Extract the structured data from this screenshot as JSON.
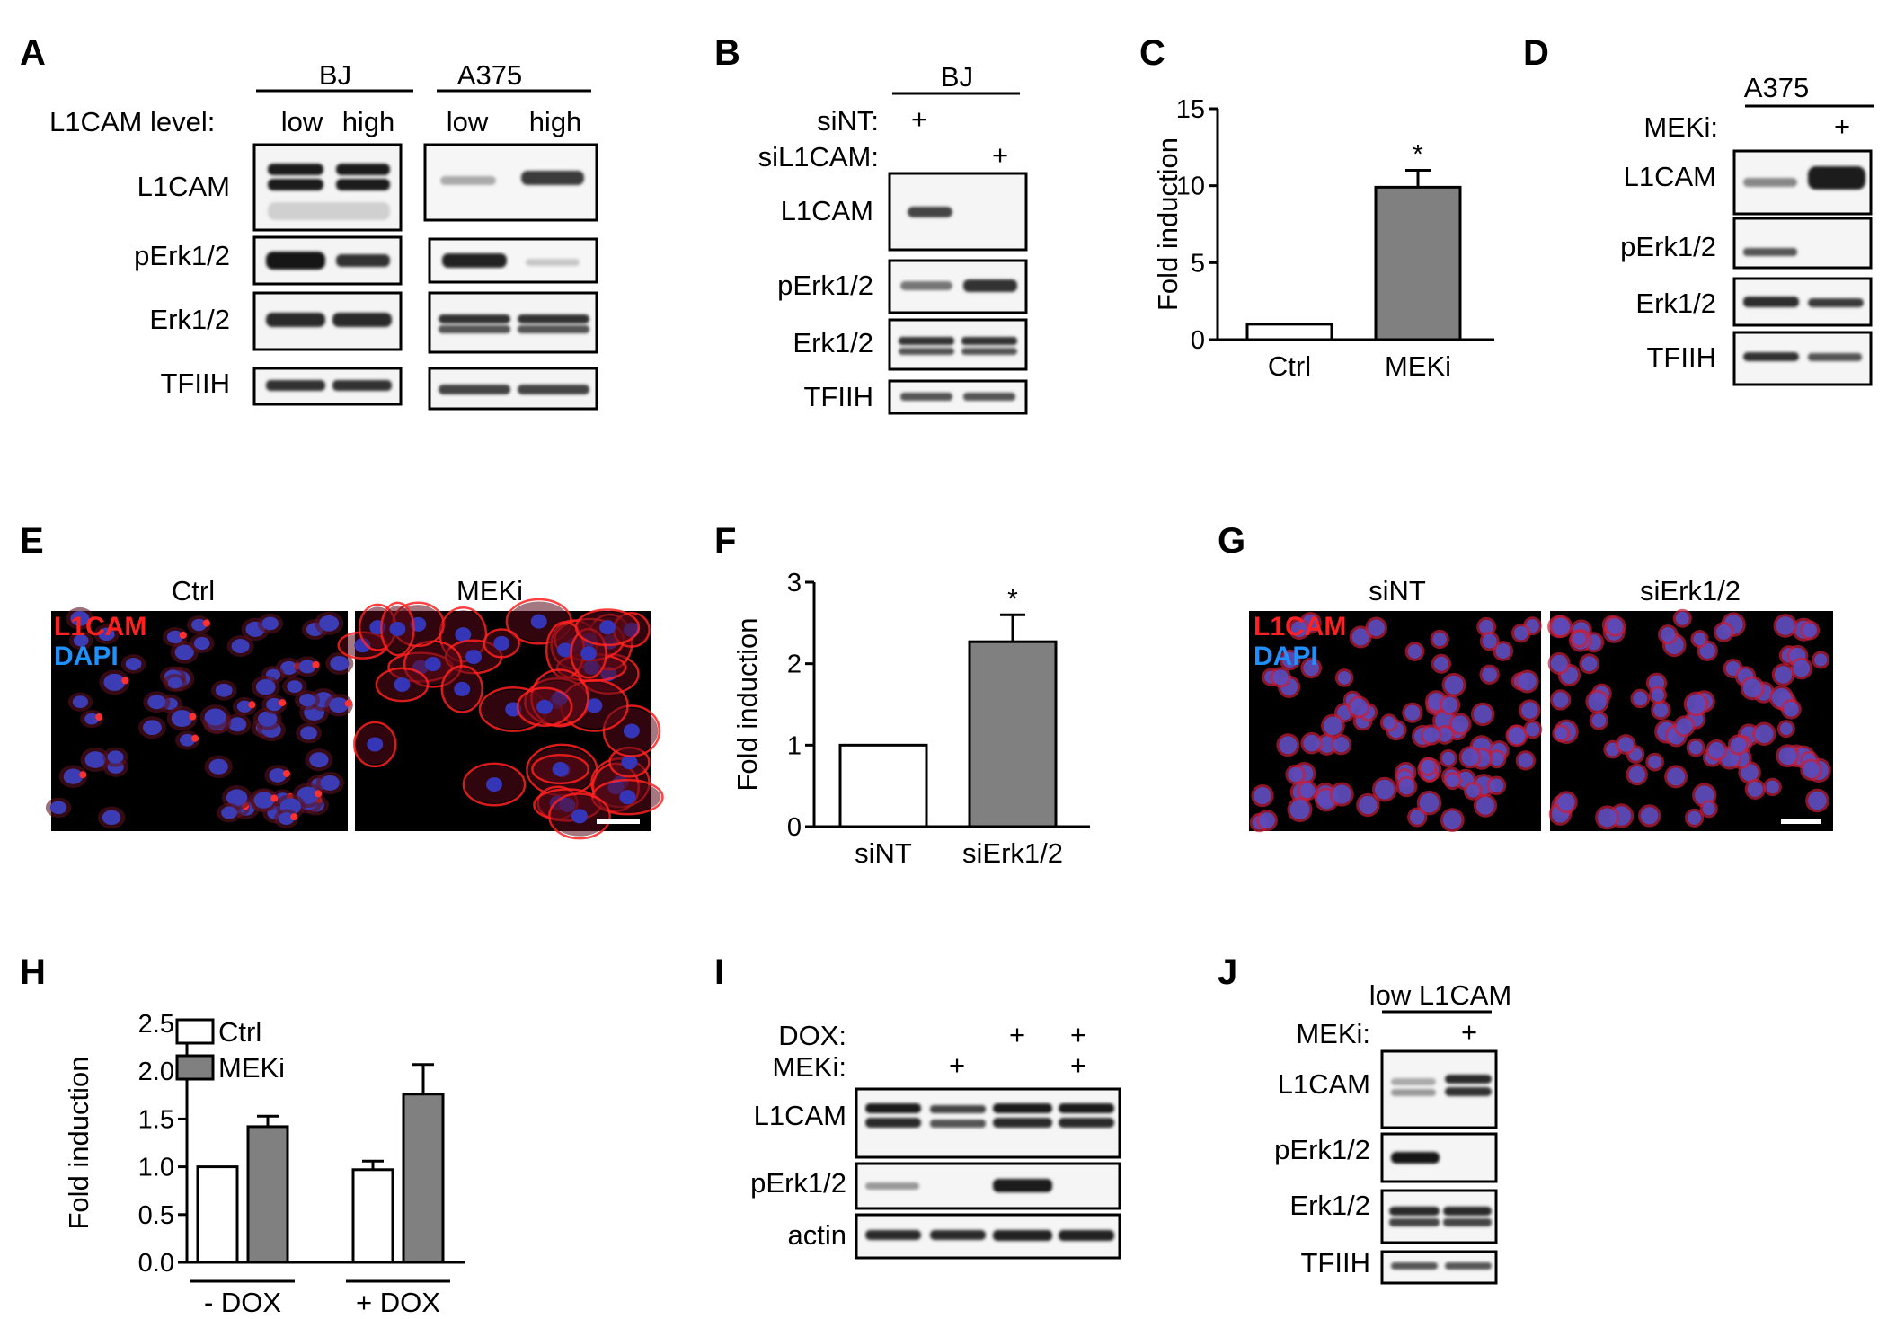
{
  "panels": {
    "A": {
      "letter": "A",
      "group1": "BJ",
      "group2": "A375",
      "level_label": "L1CAM level:",
      "lanes": [
        "low",
        "high",
        "low",
        "high"
      ],
      "rows": [
        "L1CAM",
        "pErk1/2",
        "Erk1/2",
        "TFIIH"
      ]
    },
    "B": {
      "letter": "B",
      "group": "BJ",
      "cond1": "siNT:",
      "cond2": "siL1CAM:",
      "plus": "+",
      "rows": [
        "L1CAM",
        "pErk1/2",
        "Erk1/2",
        "TFIIH"
      ]
    },
    "C": {
      "letter": "C"
    },
    "D": {
      "letter": "D",
      "group": "A375",
      "cond": "MEKi:",
      "plus": "+",
      "rows": [
        "L1CAM",
        "pErk1/2",
        "Erk1/2",
        "TFIIH"
      ]
    },
    "E": {
      "letter": "E",
      "titles": [
        "Ctrl",
        "MEKi"
      ],
      "stain1": "L1CAM",
      "stain2": "DAPI"
    },
    "F": {
      "letter": "F"
    },
    "G": {
      "letter": "G",
      "titles": [
        "siNT",
        "siErk1/2"
      ],
      "stain1": "L1CAM",
      "stain2": "DAPI"
    },
    "H": {
      "letter": "H"
    },
    "I": {
      "letter": "I",
      "cond1": "DOX:",
      "cond2": "MEKi:",
      "plus": "+",
      "rows": [
        "L1CAM",
        "pErk1/2",
        "actin"
      ]
    },
    "J": {
      "letter": "J",
      "group": "low L1CAM",
      "cond": "MEKi:",
      "plus": "+",
      "rows": [
        "L1CAM",
        "pErk1/2",
        "Erk1/2",
        "TFIIH"
      ]
    }
  },
  "colors": {
    "control_bar": "#ffffff",
    "treated_bar": "#808080",
    "l1cam_stain": "#ff2020",
    "dapi_stain": "#1e90ff"
  },
  "chart_data": [
    {
      "panel": "C",
      "type": "bar",
      "categories": [
        "Ctrl",
        "MEKi"
      ],
      "values": [
        1.0,
        9.9
      ],
      "errors": [
        0,
        1.1
      ],
      "significance": [
        "",
        "*"
      ],
      "ylabel": "Fold induction",
      "ylim": [
        0,
        15
      ],
      "yticks": [
        0,
        5,
        10,
        15
      ]
    },
    {
      "panel": "F",
      "type": "bar",
      "categories": [
        "siNT",
        "siErk1/2"
      ],
      "values": [
        1.0,
        2.27
      ],
      "errors": [
        0,
        0.33
      ],
      "significance": [
        "",
        "*"
      ],
      "ylabel": "Fold induction",
      "ylim": [
        0,
        3
      ],
      "yticks": [
        0,
        1,
        2,
        3
      ]
    },
    {
      "panel": "H",
      "type": "bar",
      "categories": [
        "- DOX",
        "+ DOX"
      ],
      "series": [
        {
          "name": "Ctrl",
          "values": [
            1.0,
            0.97
          ],
          "errors": [
            0,
            0.09
          ]
        },
        {
          "name": "MEKi",
          "values": [
            1.42,
            1.76
          ],
          "errors": [
            0.11,
            0.31
          ]
        }
      ],
      "ylabel": "Fold induction",
      "ylim": [
        0,
        2.5
      ],
      "yticks": [
        "0.0",
        "0.5",
        "1.0",
        "1.5",
        "2.0",
        "2.5"
      ],
      "legend": "top-left"
    }
  ]
}
